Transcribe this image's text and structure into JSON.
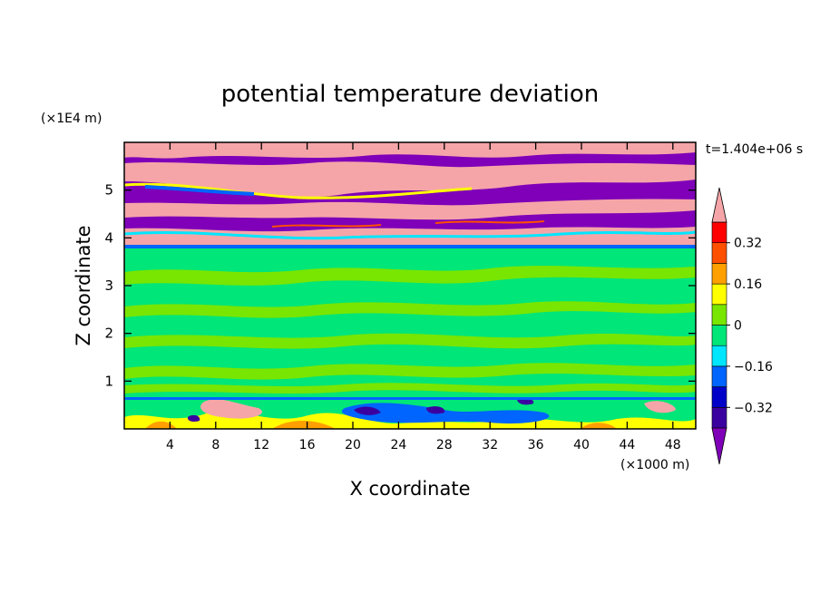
{
  "chart_data": {
    "type": "heatmap",
    "title": "potential temperature deviation",
    "xlabel": "X coordinate",
    "ylabel": "Z coordinate",
    "x_unit": "(×1000 m)",
    "y_unit": "(×1E4 m)",
    "time_label": "t=1.404e+06 s",
    "xlim": [
      0,
      50
    ],
    "ylim": [
      0,
      6
    ],
    "x_ticks": [
      "4",
      "8",
      "12",
      "16",
      "20",
      "24",
      "28",
      "32",
      "36",
      "40",
      "44",
      "48"
    ],
    "y_ticks": [
      "1",
      "2",
      "3",
      "4",
      "5"
    ],
    "colorbar": {
      "levels": [
        -0.4,
        -0.32,
        -0.24,
        -0.16,
        -0.08,
        0,
        0.08,
        0.16,
        0.24,
        0.32,
        0.4
      ],
      "labels": [
        "-0.32",
        "-0.16",
        "0",
        "0.16",
        "0.32"
      ],
      "under_color": "#7f00b8",
      "over_color": "#f5a5a8",
      "colors": [
        "#3a00a0",
        "#0000c8",
        "#0064ff",
        "#00e6ff",
        "#00e678",
        "#78e600",
        "#ffff00",
        "#ffa000",
        "#ff5000",
        "#ff0000"
      ]
    },
    "layers": [
      {
        "z_range": [
          3.8,
          6.0
        ],
        "pattern": "alternating bands",
        "values": [
          0.45,
          -0.45
        ]
      },
      {
        "z_range": [
          0.6,
          3.8
        ],
        "pattern": "patchy",
        "values": [
          -0.04,
          0.04
        ]
      },
      {
        "z_range": [
          0.0,
          0.6
        ],
        "pattern": "mixed",
        "values": [
          0.45,
          0.2,
          -0.3,
          -0.1
        ]
      }
    ]
  }
}
